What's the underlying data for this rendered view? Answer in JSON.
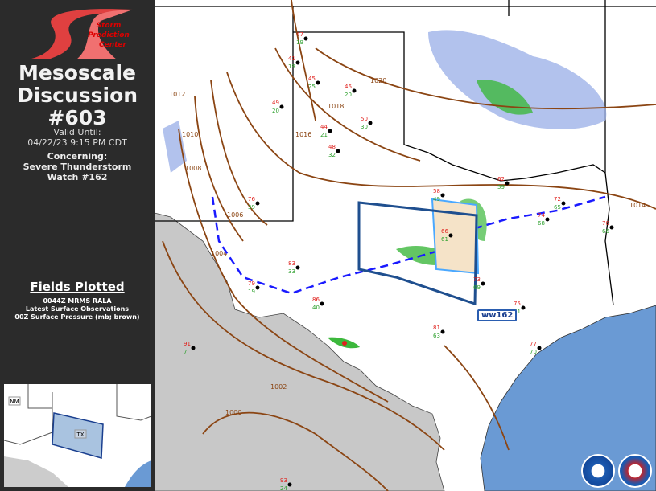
{
  "sidebar": {
    "logo_text": [
      "Storm",
      "Prediction",
      "Center"
    ],
    "title_line1": "Mesoscale",
    "title_line2": "Discussion",
    "md_number": "#603",
    "valid_label": "Valid Until:",
    "valid_time": "04/22/23 9:15 PM CDT",
    "concerning_label": "Concerning:",
    "concerning_line1": "Severe Thunderstorm",
    "concerning_line2": "Watch #162",
    "fields_heading": "Fields Plotted",
    "fields": [
      "0044Z MRMS RALA",
      "Latest Surface Observations",
      "00Z Surface Pressure (mb; brown)"
    ]
  },
  "inset": {
    "state_nm": "NM",
    "state_tx": "TX"
  },
  "map": {
    "watch_label": "ww162",
    "isobar_labels": [
      "1020",
      "1018",
      "1016",
      "1014",
      "1012",
      "1010",
      "1008",
      "1006",
      "1004",
      "1002",
      "1000"
    ],
    "colors": {
      "land": "#ffffff",
      "mexico": "#c8c8c8",
      "water": "#6a9ad4",
      "isobar": "#8b4513",
      "cold_front": "#1a1aff",
      "md_area": "#2a5db0",
      "watch": "#4aa8ff",
      "temp": "#e0201c",
      "dewpoint": "#2ca02c"
    },
    "stations": [
      {
        "t": "47",
        "d": "19"
      },
      {
        "t": "41",
        "d": "19"
      },
      {
        "t": "45",
        "d": "25"
      },
      {
        "t": "46",
        "d": "20"
      },
      {
        "t": "49",
        "d": "20"
      },
      {
        "t": "44",
        "d": "21"
      },
      {
        "t": "50",
        "d": "30"
      },
      {
        "t": "48",
        "d": "32"
      },
      {
        "t": "58",
        "d": "49"
      },
      {
        "t": "62",
        "d": "59"
      },
      {
        "t": "66",
        "d": "61"
      },
      {
        "t": "72",
        "d": "65"
      },
      {
        "t": "74",
        "d": "68"
      },
      {
        "t": "70",
        "d": "66"
      },
      {
        "t": "76",
        "d": "39"
      },
      {
        "t": "83",
        "d": "33"
      },
      {
        "t": "79",
        "d": "19"
      },
      {
        "t": "86",
        "d": "40"
      },
      {
        "t": "81",
        "d": "63"
      },
      {
        "t": "73",
        "d": "69"
      },
      {
        "t": "75",
        "d": "71"
      },
      {
        "t": "77",
        "d": "70"
      },
      {
        "t": "91",
        "d": "7"
      },
      {
        "t": "93",
        "d": "24"
      }
    ]
  }
}
